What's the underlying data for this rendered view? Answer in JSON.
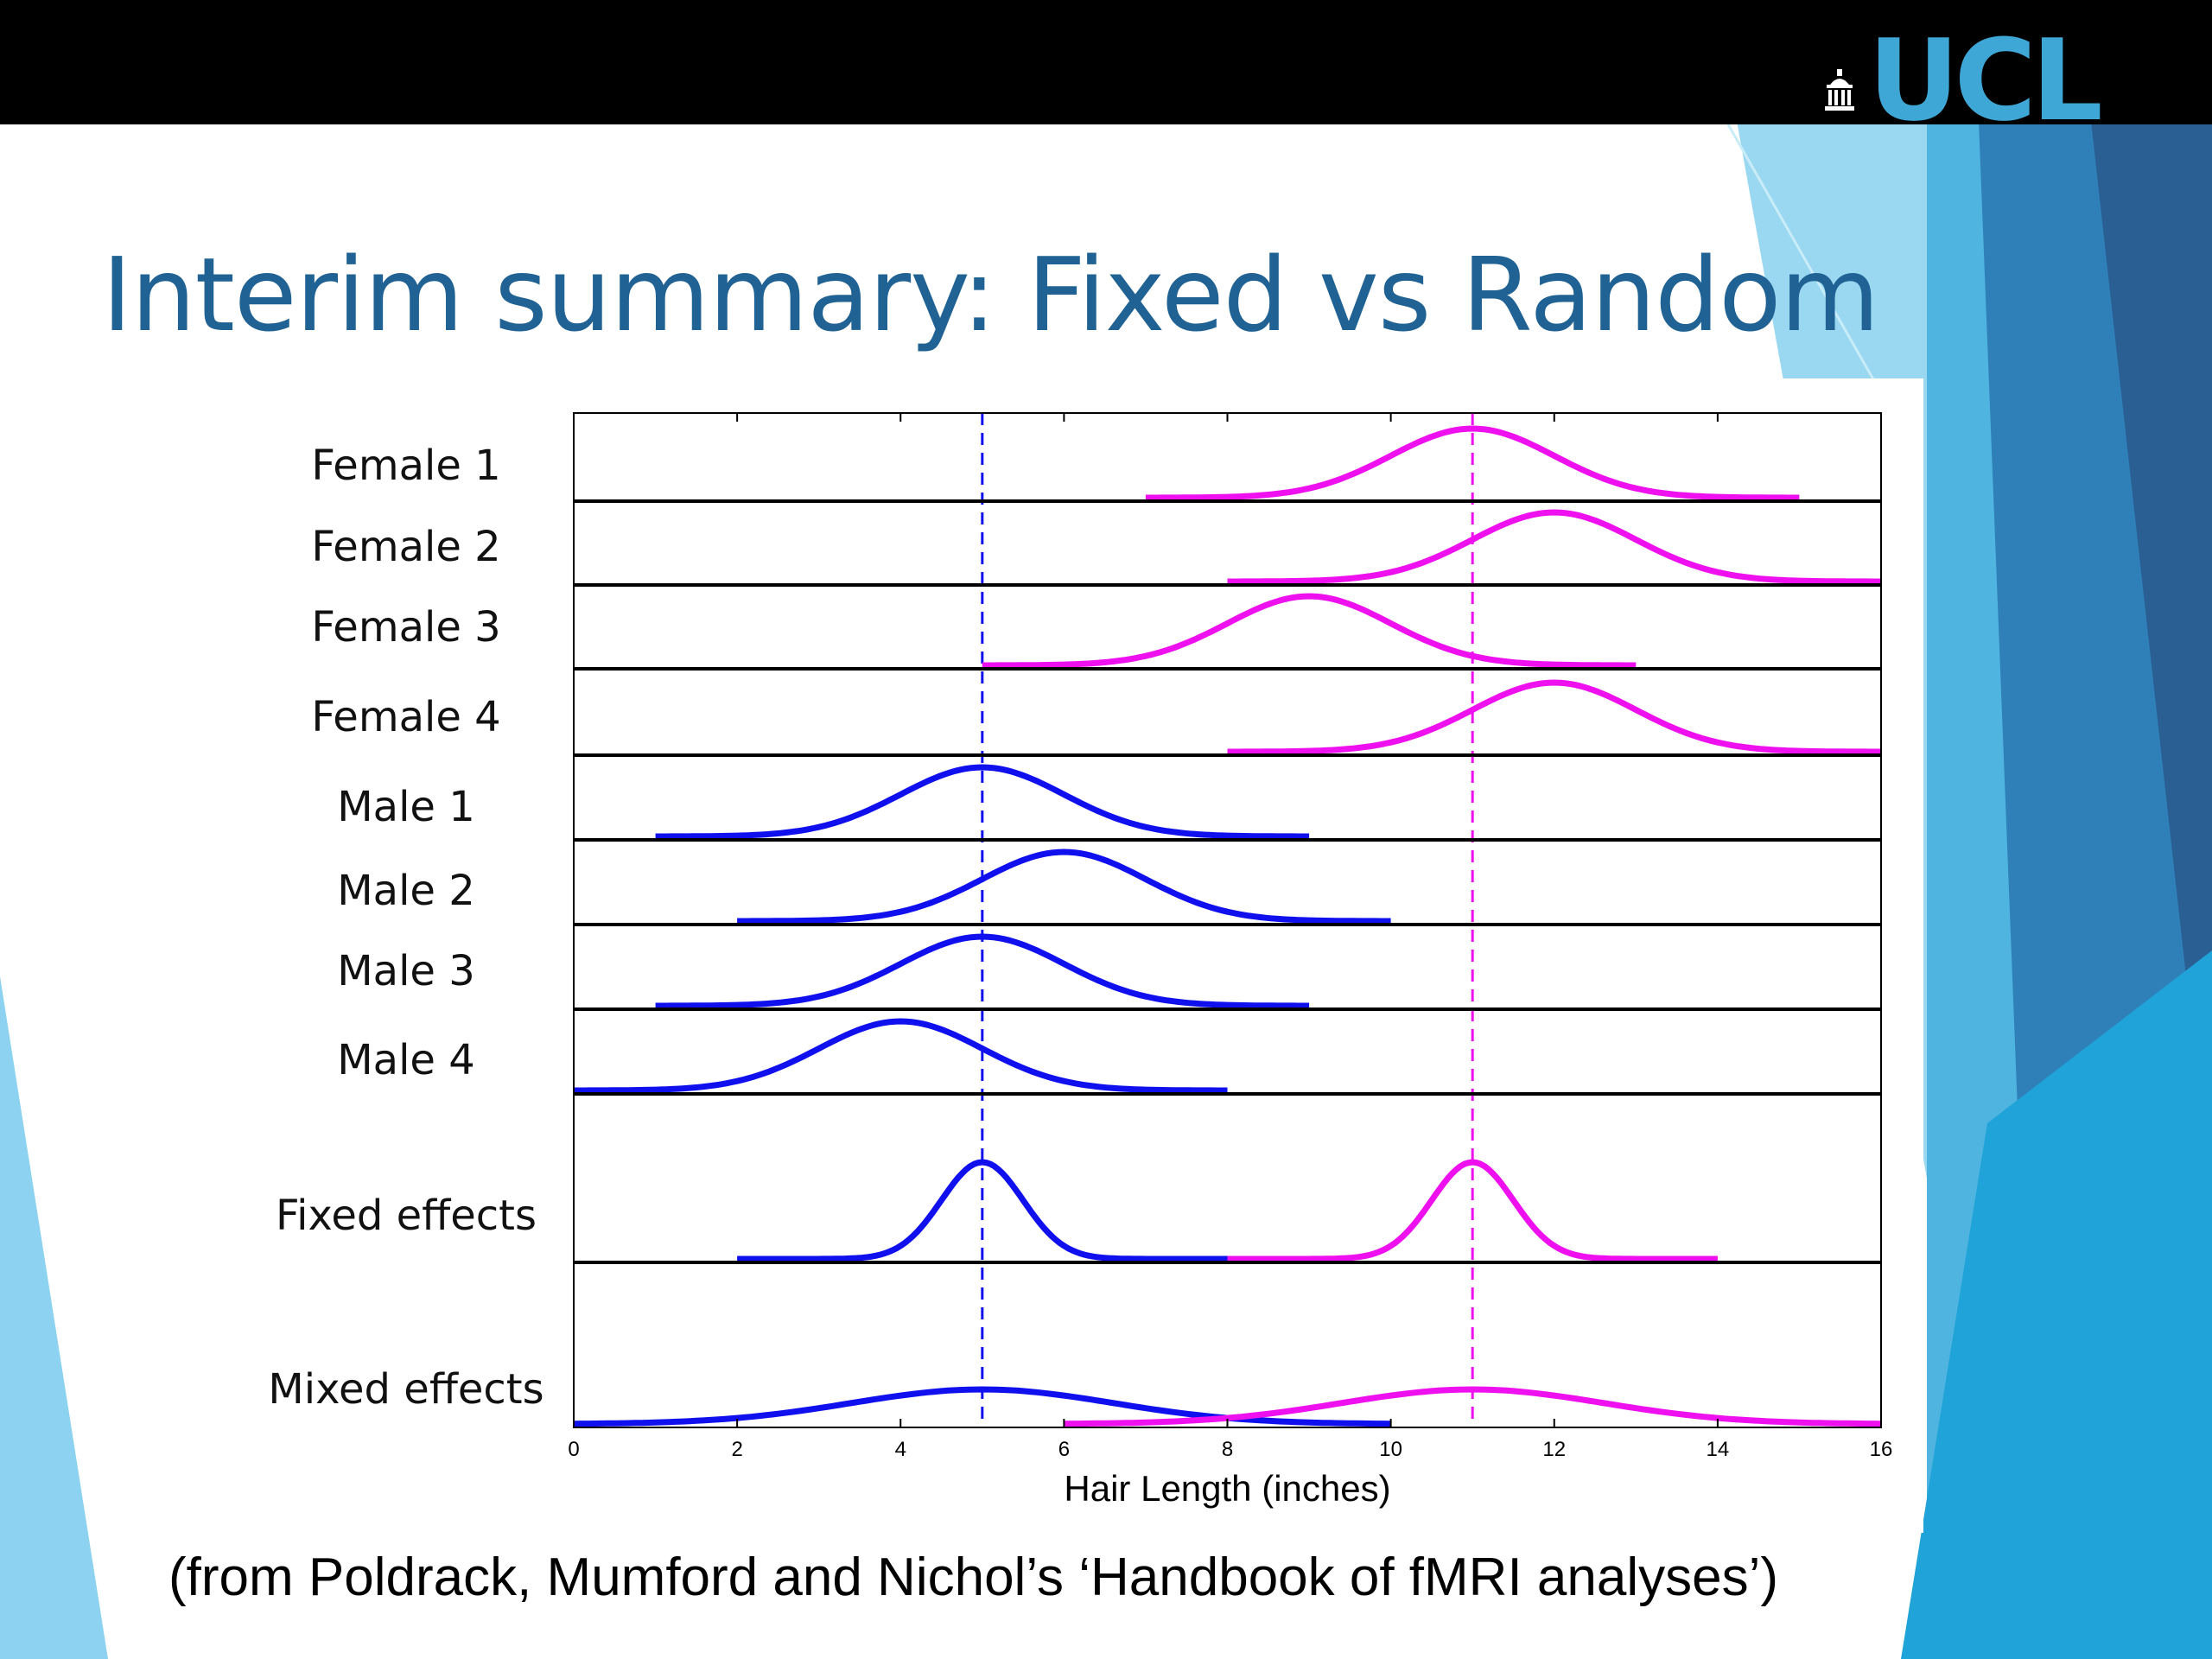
{
  "slide": {
    "title": "Interim summary: Fixed vs Random",
    "caption": "(from Poldrack, Mumford and Nichol’s ‘Handbook of fMRI analyses’)",
    "logo_text": "UCL",
    "logo_icon": "portico-icon",
    "colors": {
      "title": "#1f6293",
      "topbar": "#000000",
      "logo": "#3fa7d6",
      "decor_light": "#8fd3f0",
      "decor_mid": "#3fa7d6",
      "decor_dark": "#2a6ea3"
    }
  },
  "chart_data": {
    "type": "line",
    "xlabel": "Hair Length (inches)",
    "xlim": [
      0,
      16
    ],
    "xticks": [
      0,
      2,
      4,
      6,
      8,
      10,
      12,
      14,
      16
    ],
    "reference_lines": [
      {
        "x": 5,
        "color": "#1010ee",
        "style": "dashed"
      },
      {
        "x": 11,
        "color": "#ee10ee",
        "style": "dashed"
      }
    ],
    "colors": {
      "male": "#1010ee",
      "female": "#ee10ee"
    },
    "rows": [
      {
        "label": "Female 1",
        "curves": [
          {
            "group": "female",
            "mean": 11,
            "sd": 1,
            "range": [
              7,
              15
            ]
          }
        ]
      },
      {
        "label": "Female 2",
        "curves": [
          {
            "group": "female",
            "mean": 12,
            "sd": 1,
            "range": [
              8,
              16
            ]
          }
        ]
      },
      {
        "label": "Female 3",
        "curves": [
          {
            "group": "female",
            "mean": 9,
            "sd": 1,
            "range": [
              5,
              13
            ]
          }
        ]
      },
      {
        "label": "Female 4",
        "curves": [
          {
            "group": "female",
            "mean": 12,
            "sd": 1,
            "range": [
              8,
              16
            ]
          }
        ]
      },
      {
        "label": "Male 1",
        "curves": [
          {
            "group": "male",
            "mean": 5,
            "sd": 1,
            "range": [
              1,
              9
            ]
          }
        ]
      },
      {
        "label": "Male 2",
        "curves": [
          {
            "group": "male",
            "mean": 6,
            "sd": 1,
            "range": [
              2,
              10
            ]
          }
        ]
      },
      {
        "label": "Male 3",
        "curves": [
          {
            "group": "male",
            "mean": 5,
            "sd": 1,
            "range": [
              1,
              9
            ]
          }
        ]
      },
      {
        "label": "Male 4",
        "curves": [
          {
            "group": "male",
            "mean": 4,
            "sd": 1,
            "range": [
              0,
              8
            ]
          }
        ]
      },
      {
        "label": "Fixed effects",
        "curves": [
          {
            "group": "male",
            "mean": 5,
            "sd": 0.5,
            "range": [
              2,
              8
            ]
          },
          {
            "group": "female",
            "mean": 11,
            "sd": 0.5,
            "range": [
              8,
              14
            ]
          }
        ]
      },
      {
        "label": "Mixed effects",
        "curves": [
          {
            "group": "male",
            "mean": 5,
            "sd": 1.6,
            "range": [
              0,
              10
            ]
          },
          {
            "group": "female",
            "mean": 11,
            "sd": 1.6,
            "range": [
              6,
              16
            ]
          }
        ]
      }
    ]
  }
}
